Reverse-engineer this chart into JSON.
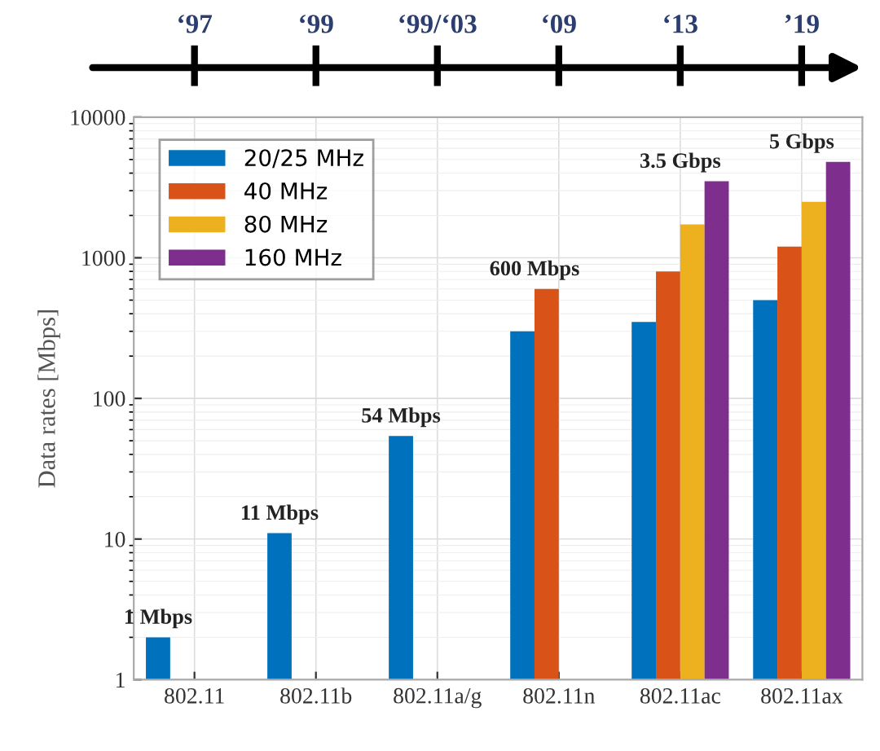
{
  "chart_data": {
    "type": "bar",
    "ylabel": "Data rates [Mbps]",
    "categories": [
      "802.11",
      "802.11b",
      "802.11a/g",
      "802.11n",
      "802.11ac",
      "802.11ax"
    ],
    "series": [
      {
        "name": "20/25 MHz",
        "color": "#0072bd",
        "values": [
          2,
          11,
          54,
          300,
          350,
          500
        ]
      },
      {
        "name": "40 MHz",
        "color": "#d95319",
        "values": [
          null,
          null,
          null,
          600,
          800,
          1200
        ]
      },
      {
        "name": "80 MHz",
        "color": "#edb120",
        "values": [
          null,
          null,
          null,
          null,
          1730,
          2500
        ]
      },
      {
        "name": "160 MHz",
        "color": "#7e2f8e",
        "values": [
          null,
          null,
          null,
          null,
          3500,
          4800
        ]
      }
    ],
    "log": "y",
    "ylim": [
      1,
      10000
    ],
    "yticks": [
      1,
      10,
      100,
      1000,
      10000
    ],
    "grid": true,
    "legend": "top left",
    "annotations": [
      "1 Mbps",
      "11 Mbps",
      "54 Mbps",
      "600 Mbps",
      "3.5 Gbps",
      "5 Gbps",
      "‘97",
      "‘99",
      "‘99/‘03",
      "‘09",
      "‘13",
      "’19"
    ]
  }
}
